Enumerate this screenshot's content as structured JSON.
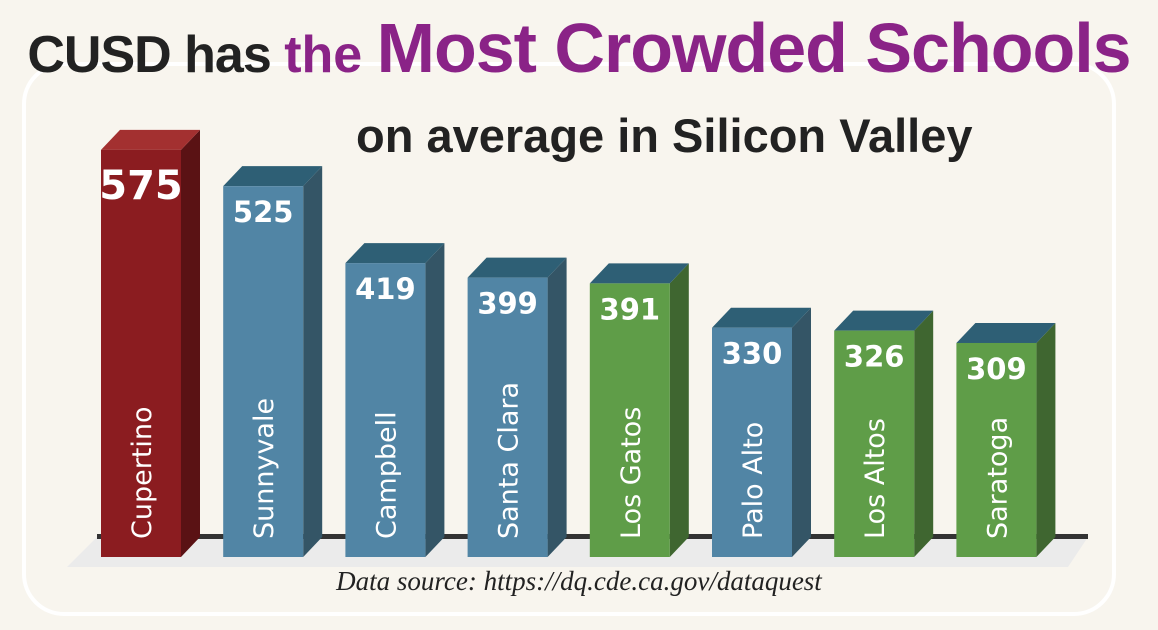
{
  "title": {
    "part1": "CUSD has ",
    "part2": "the ",
    "part3": "Most Crowded Schools",
    "line2": "on average in Silicon Valley"
  },
  "source": "Data source: https://dq.cde.ca.gov/dataquest",
  "colors": {
    "red": "#8b1c20",
    "blue": "#5185a5",
    "green": "#5f9d48",
    "accent": "#8a2387"
  },
  "chart_data": {
    "type": "bar",
    "title": "CUSD has the Most Crowded Schools on average in Silicon Valley",
    "xlabel": "",
    "ylabel": "",
    "categories": [
      "Cupertino",
      "Sunnyvale",
      "Campbell",
      "Santa Clara",
      "Los Gatos",
      "Palo Alto",
      "Los Altos",
      "Saratoga"
    ],
    "values": [
      575,
      525,
      419,
      399,
      391,
      330,
      326,
      309
    ],
    "bar_colors": [
      "red",
      "blue",
      "blue",
      "blue",
      "green",
      "blue",
      "green",
      "green"
    ],
    "grid": false
  }
}
